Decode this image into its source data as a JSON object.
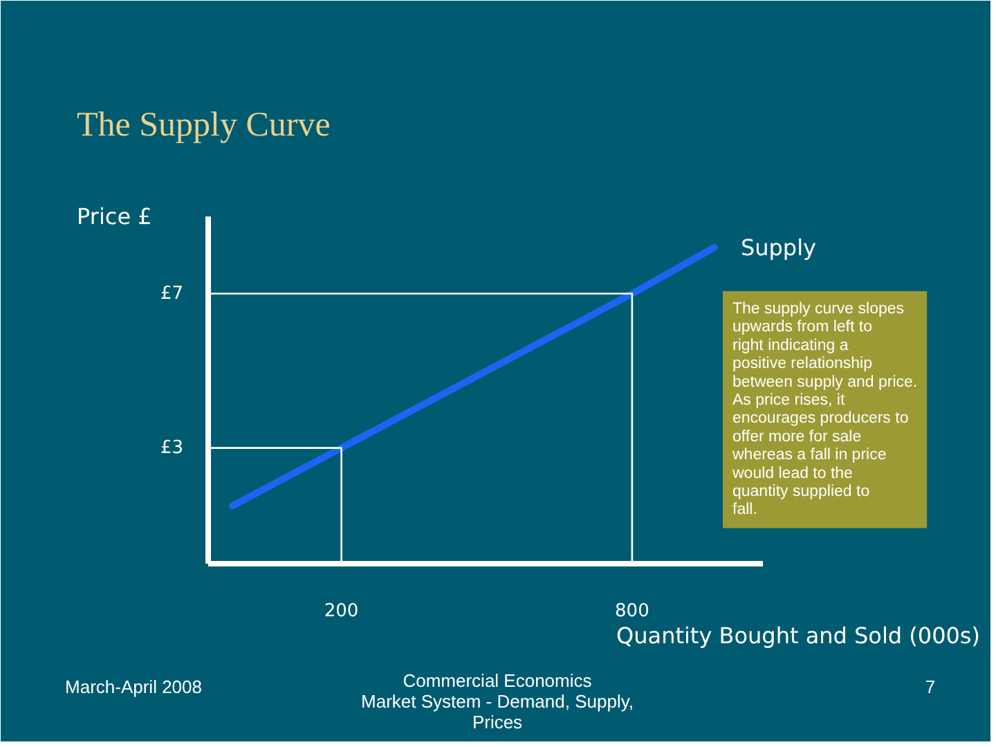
{
  "chart_data": {
    "type": "line",
    "title": "The Supply Curve",
    "xlabel": "Quantity Bought and Sold (000s)",
    "ylabel": "Price £",
    "xlim": [
      -75,
      1070
    ],
    "ylim": [
      0,
      9
    ],
    "xticks": [
      200,
      800
    ],
    "yticks": [
      {
        "value": 3,
        "label": "£3"
      },
      {
        "value": 7,
        "label": "£7"
      }
    ],
    "series": [
      {
        "name": "Supply",
        "color": "#1a66f0",
        "x": [
          -25,
          200,
          800,
          970
        ],
        "values": [
          1.5,
          3,
          7,
          8.2
        ]
      },
      {
        "color": "#ffffff",
        "x": [
          -75,
          200,
          200
        ],
        "values": [
          3,
          3,
          0
        ]
      },
      {
        "color": "#ffffff",
        "x": [
          -75,
          800,
          800
        ],
        "values": [
          7,
          7,
          0
        ]
      }
    ],
    "annotations": [
      "The supply curve slopes upwards from left to right indicating a positive relationship between supply and price. As price rises, it encourages producers to offer more for sale whereas a fall in price would lead to the quantity supplied to fall.",
      "March-April 2008",
      "Commercial Economics\nMarket System - Demand, Supply, Prices",
      "7"
    ],
    "grid": false,
    "legend": false
  }
}
